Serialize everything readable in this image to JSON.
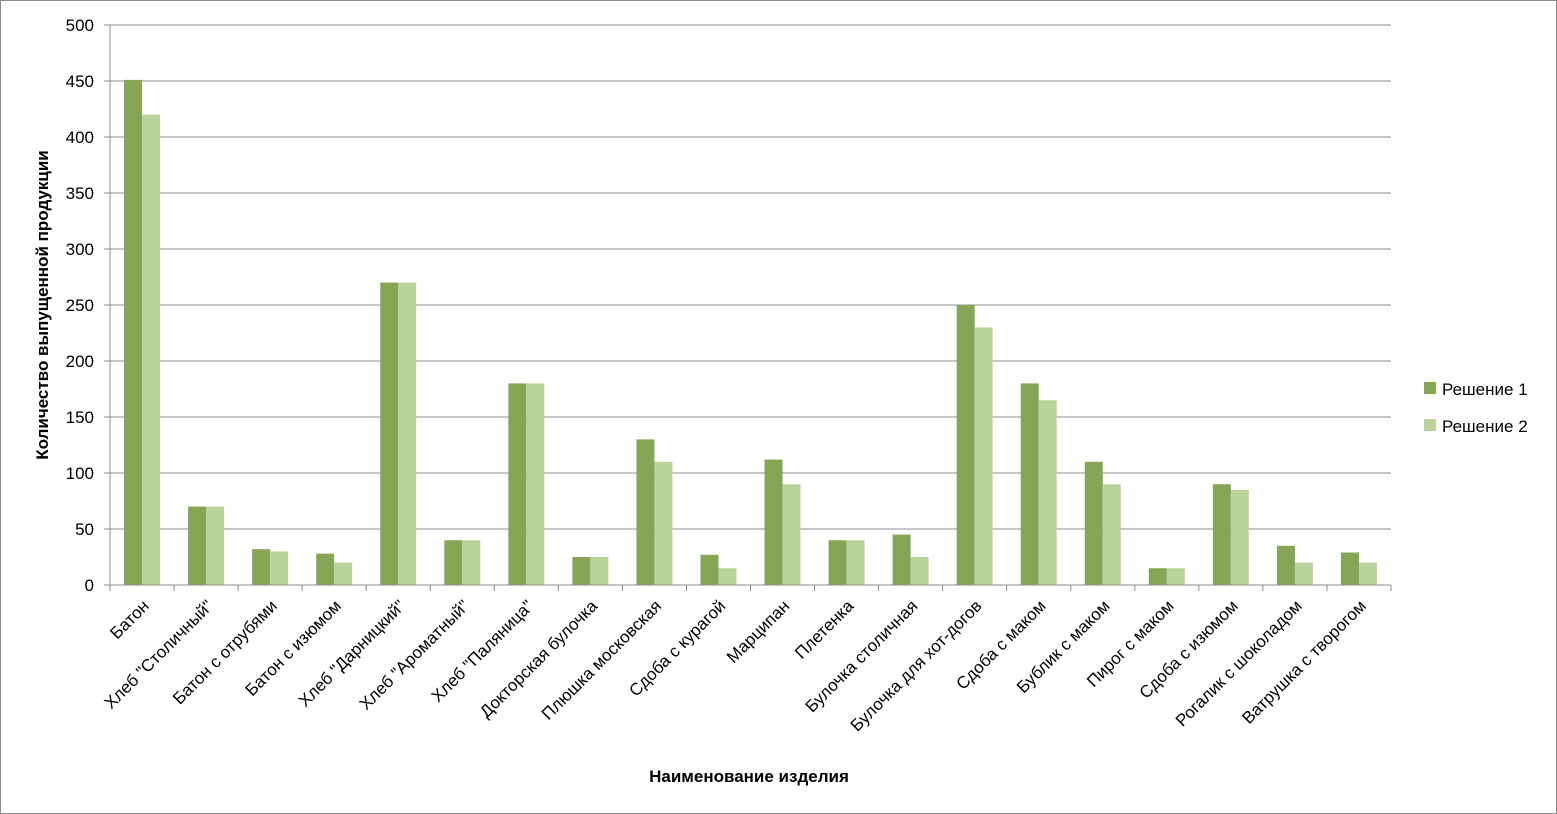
{
  "chart_data": {
    "type": "bar",
    "title": "",
    "xlabel": "Наименование изделия",
    "ylabel": "Количество выпущенной продукции",
    "ylim": [
      0,
      500
    ],
    "yticks": [
      0,
      50,
      100,
      150,
      200,
      250,
      300,
      350,
      400,
      450,
      500
    ],
    "grid": true,
    "legend_position": "right",
    "categories": [
      "Батон",
      "Хлеб \"Столичный\"",
      "Батон с отрубями",
      "Батон с изюмом",
      "Хлеб \"Дарницкий\"",
      "Хлеб \"Ароматный\"",
      "Хлеб \"Паляница\"",
      "Докторская булочка",
      "Плюшка московская",
      "Сдоба с курагой",
      "Марципан",
      "Плетенка",
      "Булочка столичная",
      "Булочка для хот-догов",
      "Сдоба с маком",
      "Бублик с маком",
      "Пирог с маком",
      "Сдоба с изюмом",
      "Рогалик с шоколадом",
      "Ватрушка с творогом"
    ],
    "series": [
      {
        "name": "Решение 1",
        "color": "#86a655",
        "values": [
          451,
          70,
          32,
          28,
          270,
          40,
          180,
          25,
          130,
          27,
          112,
          40,
          45,
          250,
          180,
          110,
          15,
          90,
          35,
          29
        ]
      },
      {
        "name": "Решение 2",
        "color": "#bcd29b",
        "values": [
          420,
          70,
          30,
          20,
          270,
          40,
          180,
          25,
          110,
          15,
          90,
          40,
          25,
          230,
          165,
          90,
          15,
          85,
          20,
          20
        ]
      }
    ]
  }
}
